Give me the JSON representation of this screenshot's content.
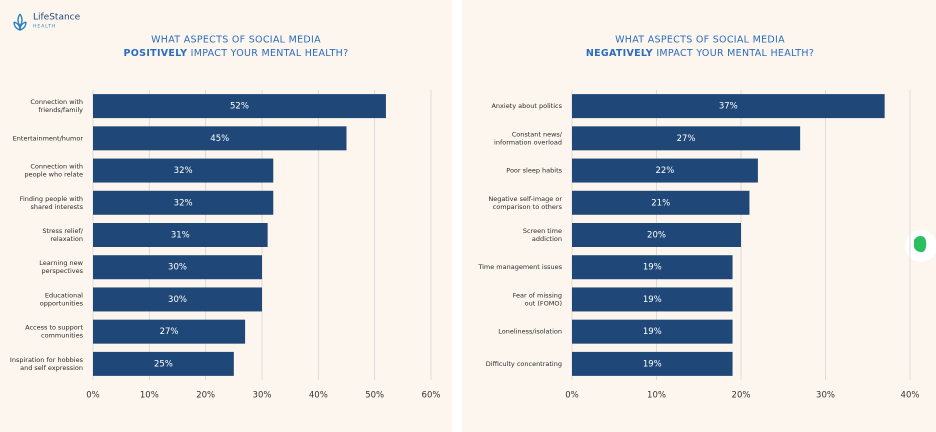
{
  "logo": {
    "name": "LifeStance",
    "sub": "HEALTH"
  },
  "chart_data": [
    {
      "type": "bar",
      "orientation": "horizontal",
      "title": "WHAT ASPECTS OF SOCIAL MEDIA",
      "title_emphasis": "POSITIVELY",
      "title_rest": "IMPACT YOUR MENTAL HEALTH?",
      "categories": [
        "Connection with\nfriends/family",
        "Entertainment/humor",
        "Connection with\npeople who relate",
        "Finding people with\nshared interests",
        "Stress relief/\nrelaxation",
        "Learning new\nperspectives",
        "Educational\nopportunities",
        "Access to support\ncommunities",
        "Inspiration for hobbies\nand self expression"
      ],
      "values": [
        52,
        45,
        32,
        32,
        31,
        30,
        30,
        27,
        25
      ],
      "value_labels": [
        "52%",
        "45%",
        "32%",
        "32%",
        "31%",
        "30%",
        "30%",
        "27%",
        "25%"
      ],
      "color": "#1f4878",
      "xlim": [
        0,
        60
      ],
      "xticks": [
        {
          "value": 0,
          "label": "0%"
        },
        {
          "value": 10,
          "label": "10%"
        },
        {
          "value": 20,
          "label": "20%"
        },
        {
          "value": 30,
          "label": "30%"
        },
        {
          "value": 40,
          "label": "40%"
        },
        {
          "value": 50,
          "label": "50%"
        },
        {
          "value": 60,
          "label": "60%"
        }
      ],
      "grid": true
    },
    {
      "type": "bar",
      "orientation": "horizontal",
      "title": "WHAT ASPECTS OF SOCIAL MEDIA",
      "title_emphasis": "NEGATIVELY",
      "title_rest": "IMPACT YOUR MENTAL HEALTH?",
      "categories": [
        "Anxiety about politics",
        "Constant news/\ninformation overload",
        "Poor sleep habits",
        "Negative self-image or\ncomparison to others",
        "Screen time\naddiction",
        "Time management issues",
        "Fear of missing\nout (FOMO)",
        "Loneliness/isolation",
        "Difficulty concentrating"
      ],
      "values": [
        37,
        27,
        22,
        21,
        20,
        19,
        19,
        19,
        19
      ],
      "value_labels": [
        "37%",
        "27%",
        "22%",
        "21%",
        "20%",
        "19%",
        "19%",
        "19%",
        "19%"
      ],
      "color": "#1f4878",
      "xlim": [
        0,
        40
      ],
      "xticks": [
        {
          "value": 0,
          "label": "0%"
        },
        {
          "value": 10,
          "label": "10%"
        },
        {
          "value": 20,
          "label": "20%"
        },
        {
          "value": 30,
          "label": "30%"
        },
        {
          "value": 40,
          "label": "40%"
        }
      ],
      "grid": true
    }
  ]
}
